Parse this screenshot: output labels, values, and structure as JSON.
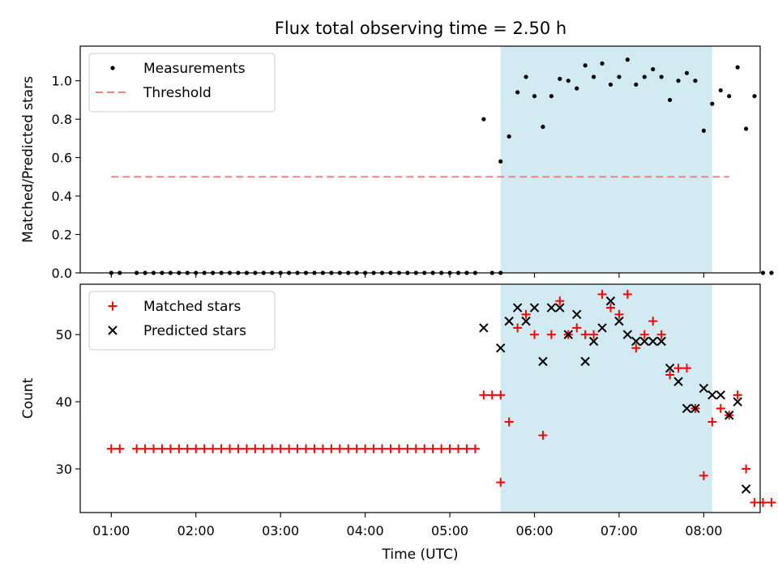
{
  "figure": {
    "title": "Flux total observing time = 2.50 h"
  },
  "chart_data": [
    {
      "type": "scatter",
      "ylabel": "Matched/Predicted stars",
      "ylim": [
        0,
        1.18
      ],
      "xlim": [
        "00:38",
        "08:40"
      ],
      "yticks": [
        "0.0",
        "0.2",
        "0.4",
        "0.6",
        "0.8",
        "1.0"
      ],
      "grid": false,
      "legend_position": "top-left",
      "shaded_interval": {
        "x0": "05:36",
        "x1": "08:06",
        "color": "#add8e6"
      },
      "threshold": {
        "name": "Threshold",
        "value": 0.5,
        "x0": "01:00",
        "x1": "08:18",
        "color": "#f08080",
        "style": "dashed"
      },
      "series": [
        {
          "name": "Measurements",
          "color": "#000000",
          "points": [
            [
              "01:00",
              0
            ],
            [
              "01:06",
              0
            ],
            [
              "01:18",
              0
            ],
            [
              "01:24",
              0
            ],
            [
              "01:30",
              0
            ],
            [
              "01:36",
              0
            ],
            [
              "01:42",
              0
            ],
            [
              "01:48",
              0
            ],
            [
              "01:54",
              0
            ],
            [
              "02:00",
              0
            ],
            [
              "02:06",
              0
            ],
            [
              "02:12",
              0
            ],
            [
              "02:18",
              0
            ],
            [
              "02:24",
              0
            ],
            [
              "02:30",
              0
            ],
            [
              "02:36",
              0
            ],
            [
              "02:42",
              0
            ],
            [
              "02:48",
              0
            ],
            [
              "02:54",
              0
            ],
            [
              "03:00",
              0
            ],
            [
              "03:06",
              0
            ],
            [
              "03:12",
              0
            ],
            [
              "03:18",
              0
            ],
            [
              "03:24",
              0
            ],
            [
              "03:30",
              0
            ],
            [
              "03:36",
              0
            ],
            [
              "03:42",
              0
            ],
            [
              "03:48",
              0
            ],
            [
              "03:54",
              0
            ],
            [
              "04:00",
              0
            ],
            [
              "04:06",
              0
            ],
            [
              "04:12",
              0
            ],
            [
              "04:18",
              0
            ],
            [
              "04:24",
              0
            ],
            [
              "04:30",
              0
            ],
            [
              "04:36",
              0
            ],
            [
              "04:42",
              0
            ],
            [
              "04:48",
              0
            ],
            [
              "04:54",
              0
            ],
            [
              "05:00",
              0
            ],
            [
              "05:06",
              0
            ],
            [
              "05:12",
              0
            ],
            [
              "05:18",
              0
            ],
            [
              "05:24",
              0.8
            ],
            [
              "05:30",
              0
            ],
            [
              "05:36",
              0
            ],
            [
              "05:36",
              0.58
            ],
            [
              "05:42",
              0.71
            ],
            [
              "05:48",
              0.94
            ],
            [
              "05:54",
              1.02
            ],
            [
              "06:00",
              0.92
            ],
            [
              "06:06",
              0.76
            ],
            [
              "06:12",
              0.92
            ],
            [
              "06:18",
              1.01
            ],
            [
              "06:24",
              1.0
            ],
            [
              "06:30",
              0.96
            ],
            [
              "06:36",
              1.08
            ],
            [
              "06:42",
              1.02
            ],
            [
              "06:48",
              1.09
            ],
            [
              "06:54",
              0.98
            ],
            [
              "07:00",
              1.02
            ],
            [
              "07:06",
              1.11
            ],
            [
              "07:12",
              0.98
            ],
            [
              "07:18",
              1.02
            ],
            [
              "07:24",
              1.06
            ],
            [
              "07:30",
              1.02
            ],
            [
              "07:36",
              0.9
            ],
            [
              "07:42",
              1.0
            ],
            [
              "07:48",
              1.04
            ],
            [
              "07:54",
              1.0
            ],
            [
              "08:00",
              0.74
            ],
            [
              "08:06",
              0.88
            ],
            [
              "08:12",
              0.95
            ],
            [
              "08:18",
              0.92
            ],
            [
              "08:24",
              1.07
            ],
            [
              "08:30",
              0.75
            ],
            [
              "08:36",
              0.92
            ],
            [
              "08:42",
              0
            ],
            [
              "08:48",
              0
            ]
          ]
        }
      ]
    },
    {
      "type": "scatter",
      "xlabel": "Time (UTC)",
      "ylabel": "Count",
      "ylim": [
        23.5,
        57.5
      ],
      "xlim": [
        "00:38",
        "08:40"
      ],
      "xticks": [
        "01:00",
        "02:00",
        "03:00",
        "04:00",
        "05:00",
        "06:00",
        "07:00",
        "08:00"
      ],
      "yticks": [
        "30",
        "40",
        "50"
      ],
      "grid": false,
      "legend_position": "top-left",
      "shaded_interval": {
        "x0": "05:36",
        "x1": "08:06",
        "color": "#add8e6"
      },
      "series": [
        {
          "name": "Matched stars",
          "marker": "+",
          "color": "#ff0000",
          "points": [
            [
              "01:00",
              33
            ],
            [
              "01:06",
              33
            ],
            [
              "01:18",
              33
            ],
            [
              "01:24",
              33
            ],
            [
              "01:30",
              33
            ],
            [
              "01:36",
              33
            ],
            [
              "01:42",
              33
            ],
            [
              "01:48",
              33
            ],
            [
              "01:54",
              33
            ],
            [
              "02:00",
              33
            ],
            [
              "02:06",
              33
            ],
            [
              "02:12",
              33
            ],
            [
              "02:18",
              33
            ],
            [
              "02:24",
              33
            ],
            [
              "02:30",
              33
            ],
            [
              "02:36",
              33
            ],
            [
              "02:42",
              33
            ],
            [
              "02:48",
              33
            ],
            [
              "02:54",
              33
            ],
            [
              "03:00",
              33
            ],
            [
              "03:06",
              33
            ],
            [
              "03:12",
              33
            ],
            [
              "03:18",
              33
            ],
            [
              "03:24",
              33
            ],
            [
              "03:30",
              33
            ],
            [
              "03:36",
              33
            ],
            [
              "03:42",
              33
            ],
            [
              "03:48",
              33
            ],
            [
              "03:54",
              33
            ],
            [
              "04:00",
              33
            ],
            [
              "04:06",
              33
            ],
            [
              "04:12",
              33
            ],
            [
              "04:18",
              33
            ],
            [
              "04:24",
              33
            ],
            [
              "04:30",
              33
            ],
            [
              "04:36",
              33
            ],
            [
              "04:42",
              33
            ],
            [
              "04:48",
              33
            ],
            [
              "04:54",
              33
            ],
            [
              "05:00",
              33
            ],
            [
              "05:06",
              33
            ],
            [
              "05:12",
              33
            ],
            [
              "05:18",
              33
            ],
            [
              "05:24",
              41
            ],
            [
              "05:30",
              41
            ],
            [
              "05:36",
              41
            ],
            [
              "05:36",
              28
            ],
            [
              "05:42",
              37
            ],
            [
              "05:48",
              51
            ],
            [
              "05:54",
              53
            ],
            [
              "06:00",
              50
            ],
            [
              "06:06",
              35
            ],
            [
              "06:12",
              50
            ],
            [
              "06:18",
              55
            ],
            [
              "06:24",
              50
            ],
            [
              "06:30",
              51
            ],
            [
              "06:36",
              50
            ],
            [
              "06:42",
              50
            ],
            [
              "06:48",
              56
            ],
            [
              "06:54",
              54
            ],
            [
              "07:00",
              53
            ],
            [
              "07:06",
              56
            ],
            [
              "07:12",
              48
            ],
            [
              "07:18",
              50
            ],
            [
              "07:24",
              52
            ],
            [
              "07:30",
              50
            ],
            [
              "07:36",
              44
            ],
            [
              "07:42",
              45
            ],
            [
              "07:48",
              45
            ],
            [
              "07:54",
              39
            ],
            [
              "08:00",
              29
            ],
            [
              "08:06",
              37
            ],
            [
              "08:12",
              39
            ],
            [
              "08:18",
              38
            ],
            [
              "08:24",
              41
            ],
            [
              "08:30",
              30
            ],
            [
              "08:36",
              25
            ],
            [
              "08:42",
              25
            ],
            [
              "08:48",
              25
            ]
          ]
        },
        {
          "name": "Predicted stars",
          "marker": "x",
          "color": "#000000",
          "points": [
            [
              "05:24",
              51
            ],
            [
              "05:36",
              48
            ],
            [
              "05:42",
              52
            ],
            [
              "05:48",
              54
            ],
            [
              "05:54",
              52
            ],
            [
              "06:00",
              54
            ],
            [
              "06:06",
              46
            ],
            [
              "06:12",
              54
            ],
            [
              "06:18",
              54
            ],
            [
              "06:24",
              50
            ],
            [
              "06:30",
              53
            ],
            [
              "06:36",
              46
            ],
            [
              "06:42",
              49
            ],
            [
              "06:48",
              51
            ],
            [
              "06:54",
              55
            ],
            [
              "07:00",
              52
            ],
            [
              "07:06",
              50
            ],
            [
              "07:12",
              49
            ],
            [
              "07:18",
              49
            ],
            [
              "07:24",
              49
            ],
            [
              "07:30",
              49
            ],
            [
              "07:36",
              45
            ],
            [
              "07:42",
              43
            ],
            [
              "07:48",
              39
            ],
            [
              "07:54",
              39
            ],
            [
              "08:00",
              42
            ],
            [
              "08:06",
              41
            ],
            [
              "08:12",
              41
            ],
            [
              "08:18",
              38
            ],
            [
              "08:24",
              40
            ],
            [
              "08:30",
              27
            ]
          ]
        }
      ]
    }
  ]
}
